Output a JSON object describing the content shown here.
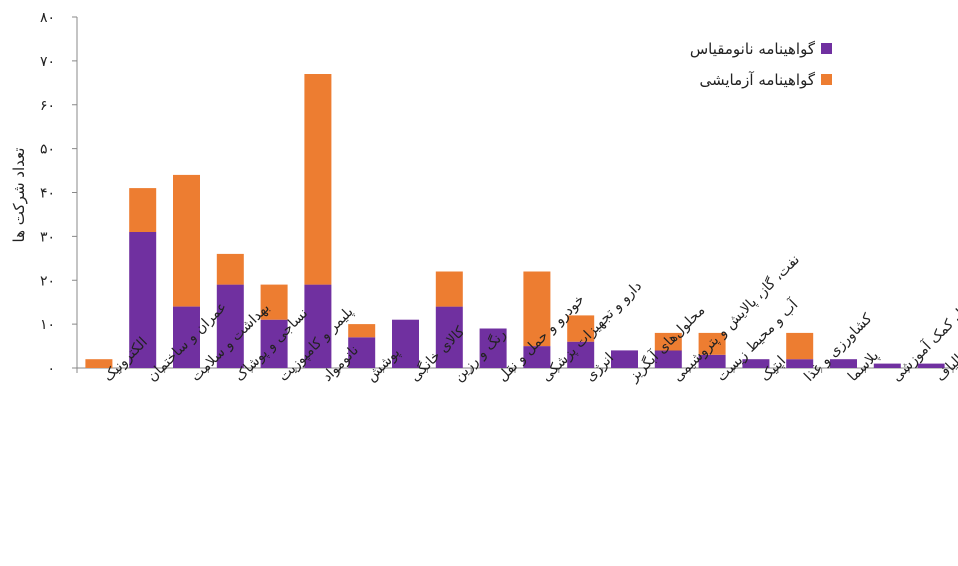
{
  "chart_data": {
    "type": "bar",
    "stacked": true,
    "ylabel": "تعداد شرکت ها",
    "ylim": [
      0,
      80
    ],
    "yticks": [
      0,
      10,
      20,
      30,
      40,
      50,
      60,
      70,
      80
    ],
    "ytick_labels": [
      "۰",
      "۱۰",
      "۲۰",
      "۳۰",
      "۴۰",
      "۵۰",
      "۶۰",
      "۷۰",
      "۸۰"
    ],
    "grid": false,
    "legend_position": "top-right",
    "categories": [
      "الکترونیک",
      "عمران و ساختمان",
      "بهداشت و سلامت",
      "نساجی و پوشاک",
      "پلیمر و کامپوزیت",
      "نانومواد",
      "پوشش",
      "کالای خانگی",
      "رنگ و رزین",
      "خودرو و حمل و نقل",
      "دارو و تجهیزات پزشکی",
      "انرژی",
      "محلول‌های آبگریز",
      "نفت، گاز، پالایش و پتروشیمی",
      "آب و محیط زیست",
      "اپتیک",
      "کشاورزی و غذا",
      "پلاسما",
      "وسایل کمک آموزشی",
      "نانوالیاف"
    ],
    "series": [
      {
        "name": "گواهینامه نانومقیاس",
        "color": "#7030a0",
        "values": [
          0,
          31,
          14,
          19,
          11,
          19,
          7,
          11,
          14,
          9,
          5,
          6,
          4,
          4,
          3,
          2,
          2,
          2,
          1,
          1
        ]
      },
      {
        "name": "گواهینامه آزمایشی",
        "color": "#ed7d31",
        "values": [
          2,
          10,
          30,
          7,
          8,
          48,
          3,
          0,
          8,
          0,
          17,
          6,
          0,
          4,
          5,
          0,
          6,
          0,
          0,
          0
        ]
      }
    ]
  }
}
